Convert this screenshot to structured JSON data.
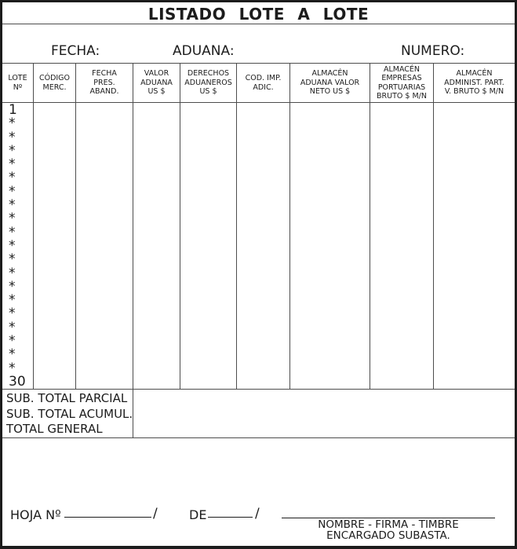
{
  "title": "LISTADO LOTE A LOTE",
  "meta": {
    "fecha_label": "FECHA:",
    "aduana_label": "ADUANA:",
    "numero_label": "NUMERO:"
  },
  "table": {
    "columns": [
      "LOTE\nNº",
      "CÓDIGO\nMERC.",
      "FECHA\nPRES.\nABAND.",
      "VALOR\nADUANA\nUS $",
      "DERECHOS\nADUANEROS\nUS $",
      "COD. IMP.\nADIC.",
      "ALMACÉN\nADUANA VALOR\nNETO US $",
      "ALMACÉN\nEMPRESAS\nPORTUARIAS\nBRUTO $ M/N",
      "ALMACÉN\nADMINIST. PART.\nV. BRUTO $ M/N"
    ],
    "lot_rows": [
      "1",
      "*",
      "*",
      "*",
      "*",
      "*",
      "*",
      "*",
      "*",
      "*",
      "*",
      "*",
      "*",
      "*",
      "*",
      "*",
      "*",
      "*",
      "*",
      "*",
      "30"
    ]
  },
  "totals": {
    "rows": [
      "SUB. TOTAL PARCIAL",
      "SUB. TOTAL ACUMUL.",
      "TOTAL GENERAL"
    ]
  },
  "footer": {
    "hoja_label": "HOJA Nº",
    "slash_1": "/",
    "de_label": "DE",
    "slash_2": "/",
    "signature_caption_1": "NOMBRE - FIRMA - TIMBRE",
    "signature_caption_2": "ENCARGADO SUBASTA."
  },
  "colors": {
    "ink": "#1c1c1c",
    "grid_line": "#4d4d4d",
    "background": "#ffffff"
  }
}
